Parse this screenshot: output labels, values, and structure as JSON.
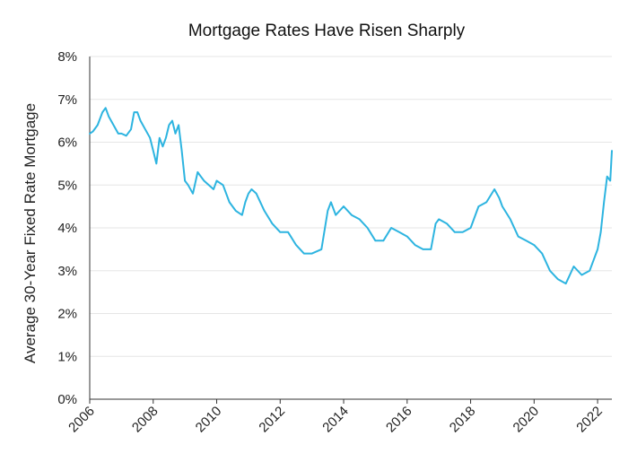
{
  "chart_data": {
    "type": "line",
    "title": "Mortgage Rates Have Risen Sharply",
    "xlabel": "",
    "ylabel": "Average 30-Year Fixed Rate Mortgage",
    "xlim": [
      2006,
      2022.45
    ],
    "ylim": [
      0,
      8
    ],
    "x_ticks": [
      "2006",
      "2008",
      "2010",
      "2012",
      "2014",
      "2016",
      "2018",
      "2020",
      "2022"
    ],
    "y_ticks": [
      "0%",
      "1%",
      "2%",
      "3%",
      "4%",
      "5%",
      "6%",
      "7%",
      "8%"
    ],
    "grid": "horizontal",
    "legend": "none",
    "colors": {
      "line": "#2db4e0",
      "grid": "#e6e6e6",
      "axis": "#333333"
    },
    "series": [
      {
        "color": "#2db4e0",
        "x": [
          2006.0,
          2006.1,
          2006.25,
          2006.4,
          2006.5,
          2006.6,
          2006.75,
          2006.9,
          2007.0,
          2007.15,
          2007.3,
          2007.4,
          2007.5,
          2007.6,
          2007.75,
          2007.9,
          2008.0,
          2008.1,
          2008.2,
          2008.3,
          2008.4,
          2008.5,
          2008.6,
          2008.7,
          2008.8,
          2008.9,
          2009.0,
          2009.1,
          2009.25,
          2009.4,
          2009.5,
          2009.6,
          2009.75,
          2009.9,
          2010.0,
          2010.2,
          2010.4,
          2010.6,
          2010.8,
          2010.9,
          2011.0,
          2011.1,
          2011.25,
          2011.5,
          2011.75,
          2012.0,
          2012.25,
          2012.5,
          2012.75,
          2013.0,
          2013.3,
          2013.5,
          2013.6,
          2013.75,
          2014.0,
          2014.25,
          2014.5,
          2014.75,
          2015.0,
          2015.25,
          2015.5,
          2015.75,
          2016.0,
          2016.25,
          2016.5,
          2016.75,
          2016.9,
          2017.0,
          2017.25,
          2017.5,
          2017.75,
          2018.0,
          2018.25,
          2018.5,
          2018.75,
          2018.9,
          2019.0,
          2019.25,
          2019.5,
          2019.75,
          2020.0,
          2020.25,
          2020.5,
          2020.75,
          2021.0,
          2021.25,
          2021.5,
          2021.75,
          2022.0,
          2022.1,
          2022.2,
          2022.3,
          2022.4,
          2022.45
        ],
        "y": [
          6.2,
          6.25,
          6.4,
          6.7,
          6.8,
          6.6,
          6.4,
          6.2,
          6.2,
          6.15,
          6.3,
          6.7,
          6.7,
          6.5,
          6.3,
          6.1,
          5.8,
          5.5,
          6.1,
          5.9,
          6.1,
          6.4,
          6.5,
          6.2,
          6.4,
          5.8,
          5.1,
          5.0,
          4.8,
          5.3,
          5.2,
          5.1,
          5.0,
          4.9,
          5.1,
          5.0,
          4.6,
          4.4,
          4.3,
          4.6,
          4.8,
          4.9,
          4.8,
          4.4,
          4.1,
          3.9,
          3.9,
          3.6,
          3.4,
          3.4,
          3.5,
          4.4,
          4.6,
          4.3,
          4.5,
          4.3,
          4.2,
          4.0,
          3.7,
          3.7,
          4.0,
          3.9,
          3.8,
          3.6,
          3.5,
          3.5,
          4.1,
          4.2,
          4.1,
          3.9,
          3.9,
          4.0,
          4.5,
          4.6,
          4.9,
          4.7,
          4.5,
          4.2,
          3.8,
          3.7,
          3.6,
          3.4,
          3.0,
          2.8,
          2.7,
          3.1,
          2.9,
          3.0,
          3.5,
          3.9,
          4.6,
          5.2,
          5.1,
          5.8
        ]
      }
    ]
  }
}
